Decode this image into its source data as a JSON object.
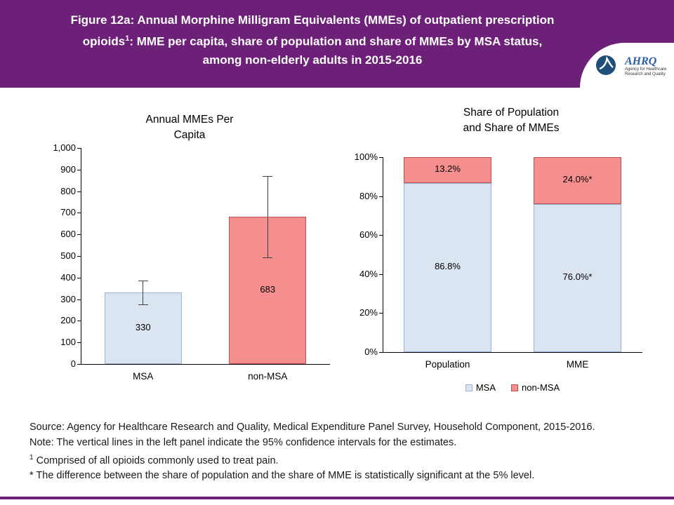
{
  "header": {
    "band_color": "#6d2077",
    "title_line1": "Figure 12a: Annual Morphine Milligram Equivalents (MMEs) of outpatient prescription",
    "title_line2_pre": "opioids",
    "title_line2_sup": "1",
    "title_line2_post": ": MME per capita, share of population and share of MMEs by MSA status,",
    "title_line3": "among non-elderly adults in 2015-2016",
    "logo": {
      "abbrev": "AHRQ",
      "tagline": "Agency for Healthcare Research and Quality"
    }
  },
  "colors": {
    "accent": "#6d2077",
    "msa_fill": "#dbe5f1",
    "msa_border": "#95b3d7",
    "nonmsa_fill": "#f58f8f",
    "nonmsa_border": "#c0504d",
    "axis": "#000000",
    "error_bar": "#404040"
  },
  "chart_data": [
    {
      "type": "bar",
      "title_lines": [
        "Annual MMEs Per",
        "Capita"
      ],
      "categories": [
        "MSA",
        "non-MSA"
      ],
      "values": [
        330,
        683
      ],
      "value_labels": [
        "330",
        "683"
      ],
      "ci_low": [
        275,
        495
      ],
      "ci_high": [
        385,
        870
      ],
      "ylim": [
        0,
        1000
      ],
      "ytick_step": 100,
      "ytick_labels": [
        "0",
        "100",
        "200",
        "300",
        "400",
        "500",
        "600",
        "700",
        "800",
        "900",
        "1,000"
      ],
      "grid": false,
      "legend_position": "none"
    },
    {
      "type": "stacked_bar_100",
      "title_lines": [
        "Share of Population",
        "and Share of MMEs"
      ],
      "categories": [
        "Population",
        "MME"
      ],
      "series": [
        {
          "name": "MSA",
          "values": [
            86.8,
            76.0
          ],
          "labels": [
            "86.8%",
            "76.0%*"
          ]
        },
        {
          "name": "non-MSA",
          "values": [
            13.2,
            24.0
          ],
          "labels": [
            "13.2%",
            "24.0%*"
          ]
        }
      ],
      "ylim": [
        0,
        100
      ],
      "ytick_labels": [
        "0%",
        "20%",
        "40%",
        "60%",
        "80%",
        "100%"
      ],
      "legend": [
        "MSA",
        "non-MSA"
      ],
      "grid": false,
      "legend_position": "bottom"
    }
  ],
  "footer": {
    "source": "Source: Agency for Healthcare Research and Quality, Medical Expenditure Panel Survey, Household Component, 2015-2016.",
    "note": "Note: The vertical lines in the left panel indicate the 95% confidence intervals for the estimates.",
    "fn1_sup": "1",
    "fn1_text": " Comprised of all opioids commonly used to treat pain.",
    "fn_star": "* The difference between the share of population and the share of MME is statistically significant at the 5% level."
  }
}
